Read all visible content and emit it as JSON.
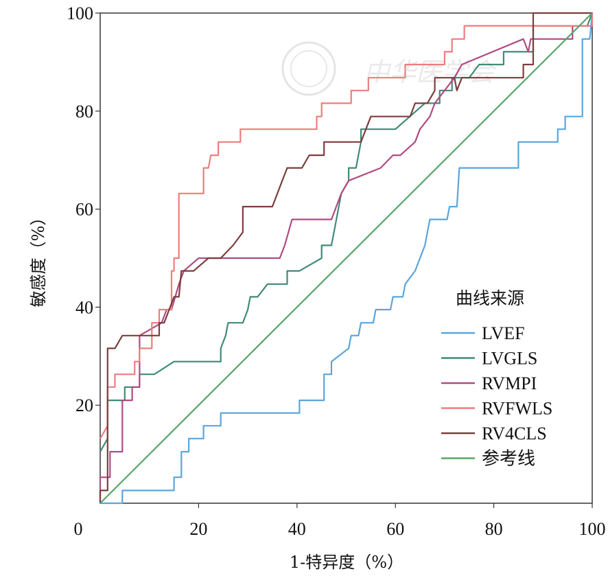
{
  "chart_data": {
    "type": "line",
    "title": "",
    "xlabel": "1-特异度（%）",
    "ylabel": "敏感度（%）",
    "xlim": [
      0,
      100
    ],
    "ylim": [
      0,
      100
    ],
    "x_ticks": [
      "0",
      "20",
      "40",
      "60",
      "80",
      "100"
    ],
    "y_ticks": [
      "20",
      "40",
      "60",
      "80",
      "100"
    ],
    "legend_title": "曲线来源",
    "legend_position": "right",
    "watermark": "中华医学会",
    "series": [
      {
        "name": "LVEF",
        "color": "#5aa5dc",
        "points": [
          [
            0,
            0
          ],
          [
            4.5,
            0
          ],
          [
            4.5,
            2.6
          ],
          [
            15,
            2.6
          ],
          [
            15,
            5.3
          ],
          [
            16.5,
            5.3
          ],
          [
            16.5,
            10.5
          ],
          [
            18,
            10.5
          ],
          [
            18,
            13.2
          ],
          [
            21,
            13.2
          ],
          [
            21,
            15.8
          ],
          [
            24.5,
            15.8
          ],
          [
            24.5,
            18.4
          ],
          [
            40.5,
            18.4
          ],
          [
            40.5,
            21
          ],
          [
            45.5,
            21
          ],
          [
            45.5,
            26.3
          ],
          [
            47,
            26.3
          ],
          [
            47,
            28.9
          ],
          [
            50.5,
            31.6
          ],
          [
            51,
            34.2
          ],
          [
            52.5,
            34.2
          ],
          [
            53,
            36.8
          ],
          [
            55.5,
            36.8
          ],
          [
            56,
            39.5
          ],
          [
            58,
            39.5
          ],
          [
            59,
            39.5
          ],
          [
            59.5,
            42.1
          ],
          [
            61.5,
            42.1
          ],
          [
            62,
            44.7
          ],
          [
            64,
            47.4
          ],
          [
            66,
            52.6
          ],
          [
            67,
            57.9
          ],
          [
            70.5,
            57.9
          ],
          [
            71,
            60.5
          ],
          [
            72.5,
            60.5
          ],
          [
            73,
            68.4
          ],
          [
            85,
            68.4
          ],
          [
            85,
            73.7
          ],
          [
            93,
            73.7
          ],
          [
            93,
            76.3
          ],
          [
            94.5,
            76.3
          ],
          [
            94.5,
            78.9
          ],
          [
            98,
            78.9
          ],
          [
            98,
            94.7
          ],
          [
            99.5,
            94.7
          ],
          [
            100,
            100
          ]
        ]
      },
      {
        "name": "LVGLS",
        "color": "#3f8a77",
        "points": [
          [
            0,
            10.5
          ],
          [
            1.5,
            13.2
          ],
          [
            1.5,
            21
          ],
          [
            5,
            21
          ],
          [
            5,
            23.7
          ],
          [
            8,
            23.7
          ],
          [
            8,
            26.3
          ],
          [
            11,
            26.3
          ],
          [
            15,
            28.9
          ],
          [
            24.5,
            28.9
          ],
          [
            24.5,
            31.6
          ],
          [
            25.5,
            34.2
          ],
          [
            26,
            36.8
          ],
          [
            29,
            36.8
          ],
          [
            30,
            39.5
          ],
          [
            30.5,
            42.1
          ],
          [
            32,
            42.1
          ],
          [
            34,
            44.7
          ],
          [
            38,
            44.7
          ],
          [
            38,
            47.4
          ],
          [
            40.5,
            47.4
          ],
          [
            45,
            50
          ],
          [
            45,
            52.6
          ],
          [
            47,
            52.6
          ],
          [
            48,
            57.9
          ],
          [
            49,
            63.2
          ],
          [
            50.5,
            65.8
          ],
          [
            50.5,
            68.4
          ],
          [
            52,
            68.4
          ],
          [
            53,
            73.7
          ],
          [
            53,
            76.3
          ],
          [
            60,
            76.3
          ],
          [
            66,
            81.6
          ],
          [
            69,
            81.6
          ],
          [
            69,
            84.2
          ],
          [
            71.5,
            84.2
          ],
          [
            71.5,
            86.8
          ],
          [
            75,
            86.8
          ],
          [
            77,
            89.5
          ],
          [
            82,
            89.5
          ],
          [
            82,
            92.1
          ],
          [
            88,
            92.1
          ],
          [
            88,
            97.4
          ],
          [
            99,
            97.4
          ],
          [
            100,
            100
          ]
        ]
      },
      {
        "name": "RVMPI",
        "color": "#b04a82",
        "points": [
          [
            0,
            0
          ],
          [
            0,
            5.3
          ],
          [
            2,
            5.3
          ],
          [
            2,
            10.5
          ],
          [
            4.5,
            10.5
          ],
          [
            4.5,
            21
          ],
          [
            6.5,
            21
          ],
          [
            6.5,
            23.7
          ],
          [
            8,
            23.7
          ],
          [
            8,
            34.2
          ],
          [
            12.5,
            36.8
          ],
          [
            13.5,
            39.5
          ],
          [
            14.5,
            39.5
          ],
          [
            16,
            44.7
          ],
          [
            17,
            47.4
          ],
          [
            20,
            50
          ],
          [
            36.5,
            50
          ],
          [
            37.5,
            52.6
          ],
          [
            39,
            57.9
          ],
          [
            47,
            57.9
          ],
          [
            49,
            63.2
          ],
          [
            50.5,
            65.8
          ],
          [
            57,
            68.4
          ],
          [
            59.5,
            71
          ],
          [
            61,
            71
          ],
          [
            64,
            73.7
          ],
          [
            65,
            76.3
          ],
          [
            67,
            78.9
          ],
          [
            68,
            81.6
          ],
          [
            70,
            84.2
          ],
          [
            72,
            86.8
          ],
          [
            73.5,
            89.5
          ],
          [
            86,
            94.7
          ],
          [
            87,
            92.1
          ],
          [
            87.5,
            94.7
          ],
          [
            96,
            94.7
          ],
          [
            96,
            97.4
          ],
          [
            100,
            97.4
          ]
        ]
      },
      {
        "name": "RVFWLS",
        "color": "#ef7c7c",
        "points": [
          [
            0,
            13.2
          ],
          [
            1.5,
            15.8
          ],
          [
            1.5,
            23.7
          ],
          [
            3,
            23.7
          ],
          [
            3,
            26.3
          ],
          [
            7,
            26.3
          ],
          [
            7,
            28.9
          ],
          [
            8,
            28.9
          ],
          [
            8,
            31.6
          ],
          [
            10.5,
            31.6
          ],
          [
            10.5,
            36.8
          ],
          [
            12,
            36.8
          ],
          [
            12,
            39.5
          ],
          [
            14.5,
            39.5
          ],
          [
            14.5,
            47.4
          ],
          [
            15,
            47.4
          ],
          [
            15,
            50
          ],
          [
            16,
            50
          ],
          [
            16,
            63.2
          ],
          [
            21,
            63.2
          ],
          [
            21,
            68.4
          ],
          [
            22,
            68.4
          ],
          [
            22.5,
            71
          ],
          [
            24,
            71
          ],
          [
            24,
            73.7
          ],
          [
            28.5,
            73.7
          ],
          [
            28.5,
            76.3
          ],
          [
            44,
            76.3
          ],
          [
            44,
            78.9
          ],
          [
            45,
            78.9
          ],
          [
            45,
            81.6
          ],
          [
            51,
            81.6
          ],
          [
            51,
            84.2
          ],
          [
            54.5,
            84.2
          ],
          [
            54.5,
            86.8
          ],
          [
            62,
            86.8
          ],
          [
            62,
            89.5
          ],
          [
            70,
            89.5
          ],
          [
            70,
            92.1
          ],
          [
            71.5,
            92.1
          ],
          [
            71.5,
            94.7
          ],
          [
            74,
            94.7
          ],
          [
            74,
            97.4
          ],
          [
            100,
            97.4
          ],
          [
            100,
            100
          ]
        ]
      },
      {
        "name": "RV4CLS",
        "color": "#7c3d3d",
        "points": [
          [
            0,
            0
          ],
          [
            0,
            2.6
          ],
          [
            1.5,
            2.6
          ],
          [
            1.5,
            31.6
          ],
          [
            3,
            31.6
          ],
          [
            4.5,
            34.2
          ],
          [
            8,
            34.2
          ],
          [
            12,
            34.2
          ],
          [
            12,
            36.8
          ],
          [
            13,
            36.8
          ],
          [
            15,
            42.1
          ],
          [
            16,
            42.1
          ],
          [
            16.5,
            47.4
          ],
          [
            19,
            47.4
          ],
          [
            22,
            50
          ],
          [
            24.5,
            50
          ],
          [
            27,
            52.6
          ],
          [
            29,
            55.3
          ],
          [
            29,
            60.5
          ],
          [
            35,
            60.5
          ],
          [
            37,
            65.8
          ],
          [
            38,
            68.4
          ],
          [
            41,
            68.4
          ],
          [
            42.5,
            71
          ],
          [
            45.5,
            71
          ],
          [
            45.5,
            73.7
          ],
          [
            53,
            73.7
          ],
          [
            54,
            76.3
          ],
          [
            55,
            78.9
          ],
          [
            63,
            78.9
          ],
          [
            64,
            81.6
          ],
          [
            66.5,
            81.6
          ],
          [
            68,
            84.2
          ],
          [
            68,
            86.8
          ],
          [
            72,
            86.8
          ],
          [
            72.5,
            84.2
          ],
          [
            73.5,
            86.8
          ],
          [
            86,
            86.8
          ],
          [
            86,
            89.5
          ],
          [
            88,
            89.5
          ],
          [
            88,
            100
          ],
          [
            100,
            100
          ]
        ]
      },
      {
        "name": "参考线",
        "color": "#57a56a",
        "points": [
          [
            0,
            0
          ],
          [
            100,
            100
          ]
        ]
      }
    ]
  }
}
